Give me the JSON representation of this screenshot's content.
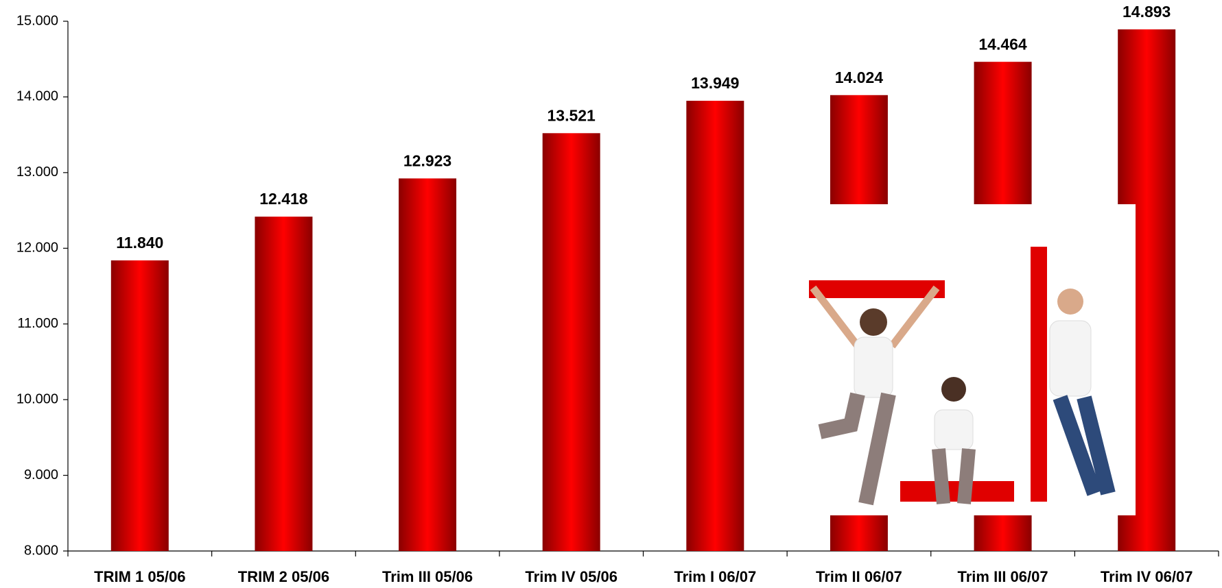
{
  "chart_data": {
    "type": "bar",
    "categories": [
      "TRIM 1 05/06",
      "TRIM 2 05/06",
      "Trim III 05/06",
      "Trim IV 05/06",
      "Trim I 06/07",
      "Trim II 06/07",
      "Trim III 06/07",
      "Trim IV 06/07"
    ],
    "values": [
      11840,
      12418,
      12923,
      13521,
      13949,
      14024,
      14464,
      14893
    ],
    "value_labels": [
      "11.840",
      "12.418",
      "12.923",
      "13.521",
      "13.949",
      "14.024",
      "14.464",
      "14.893"
    ],
    "color": "#ff0000",
    "ylim": [
      8000,
      15000
    ],
    "yticks": [
      {
        "value": 8000,
        "label": "8.000"
      },
      {
        "value": 9000,
        "label": "9.000"
      },
      {
        "value": 10000,
        "label": "10.000"
      },
      {
        "value": 11000,
        "label": "11.000"
      },
      {
        "value": 12000,
        "label": "12.000"
      },
      {
        "value": 13000,
        "label": "13.000"
      },
      {
        "value": 14000,
        "label": "14.000"
      },
      {
        "value": 15000,
        "label": "15.000"
      }
    ],
    "grid": false
  }
}
